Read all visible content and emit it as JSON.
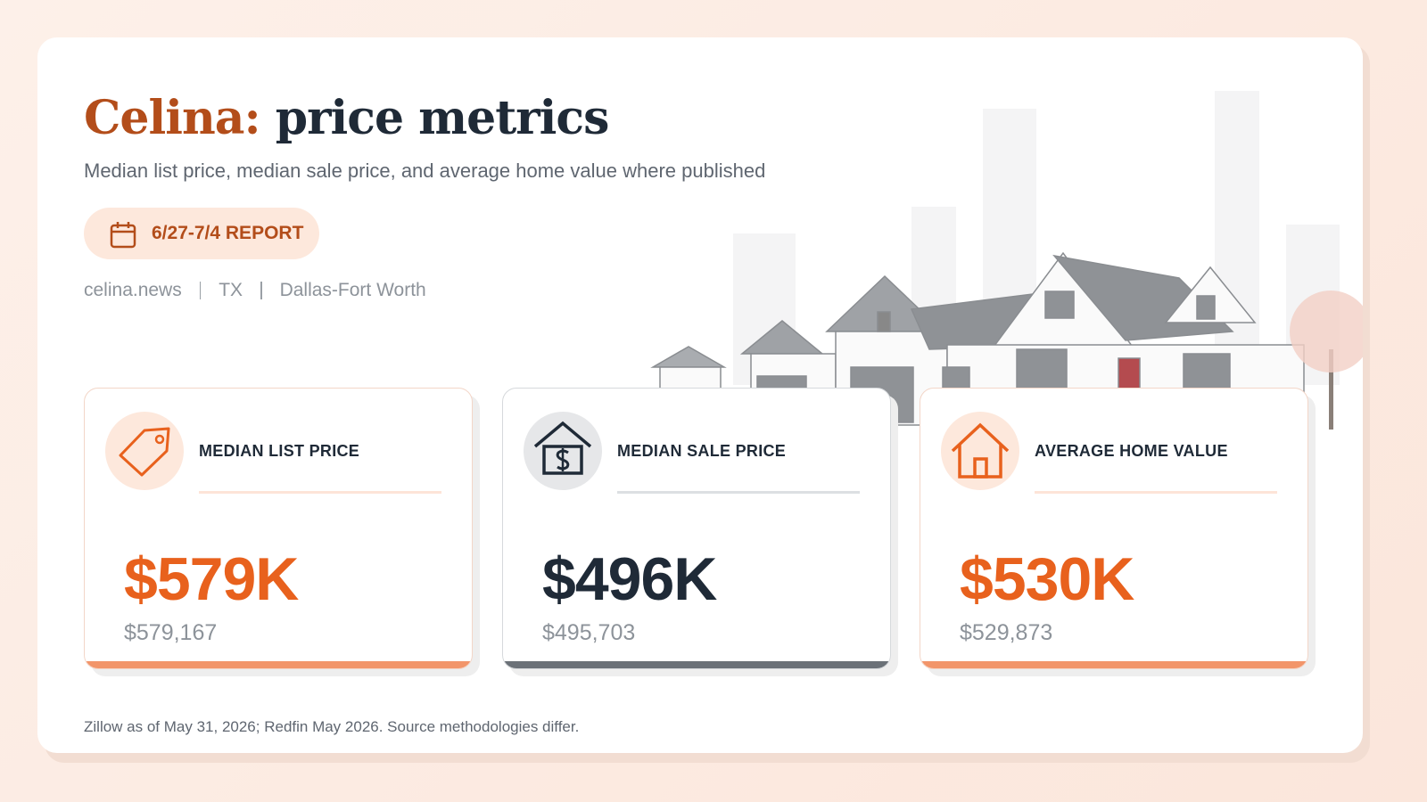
{
  "header": {
    "title_place": "Celina:",
    "title_rest": "price metrics",
    "subtitle": "Median list price, median sale price, and average home value where published",
    "badge": "6/27-7/4 REPORT",
    "meta": [
      "celina.news",
      "TX",
      "Dallas-Fort Worth"
    ]
  },
  "cards": [
    {
      "label": "MEDIAN LIST PRICE",
      "value": "$579K",
      "exact": "$579,167"
    },
    {
      "label": "MEDIAN SALE PRICE",
      "value": "$496K",
      "exact": "$495,703"
    },
    {
      "label": "AVERAGE HOME VALUE",
      "value": "$530K",
      "exact": "$529,873"
    }
  ],
  "footer": "Zillow as of May 31, 2026; Redfin May 2026. Source methodologies differ."
}
